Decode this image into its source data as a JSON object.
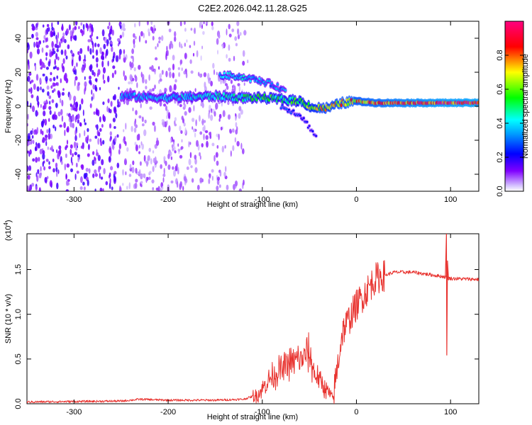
{
  "title": "C2E2.2026.042.11.28.G25",
  "chart_data": [
    {
      "type": "heatmap",
      "name": "spectrogram",
      "xlabel": "Height of straight line (km)",
      "ylabel": "Frequency (Hz)",
      "xlim": [
        -350,
        130
      ],
      "ylim": [
        -50,
        50
      ],
      "xticks": [
        -300,
        -200,
        -100,
        0,
        100
      ],
      "yticks": [
        -40,
        -20,
        0,
        20,
        40
      ],
      "colorbar": {
        "label": "Normalized spectral amplitude",
        "range": [
          0,
          1
        ],
        "ticks": [
          0,
          0.2,
          0.4,
          0.6,
          0.8
        ],
        "tick_labels": [
          "0.0",
          "0.2",
          "0.4",
          "0.6",
          "0.8"
        ],
        "colors": [
          "#ffffff",
          "#8000ff",
          "#0000ff",
          "#00ffff",
          "#00ff00",
          "#ffff00",
          "#ff0000",
          "#ff0080"
        ]
      },
      "main_trace": [
        {
          "x": -250,
          "y": 6,
          "a": 0.35
        },
        {
          "x": -200,
          "y": 5,
          "a": 0.4
        },
        {
          "x": -150,
          "y": 6,
          "a": 0.45
        },
        {
          "x": -120,
          "y": 5,
          "a": 0.5
        },
        {
          "x": -100,
          "y": 5,
          "a": 0.55
        },
        {
          "x": -80,
          "y": 4,
          "a": 0.55
        },
        {
          "x": -60,
          "y": 3,
          "a": 0.6
        },
        {
          "x": -45,
          "y": -1,
          "a": 0.7
        },
        {
          "x": -30,
          "y": -1,
          "a": 0.75
        },
        {
          "x": -15,
          "y": 2,
          "a": 0.8
        },
        {
          "x": 0,
          "y": 3,
          "a": 0.8
        },
        {
          "x": 20,
          "y": 2,
          "a": 0.85
        },
        {
          "x": 50,
          "y": 2,
          "a": 0.9
        },
        {
          "x": 90,
          "y": 2,
          "a": 0.95
        },
        {
          "x": 130,
          "y": 2,
          "a": 0.97
        }
      ],
      "upper_trace": [
        {
          "x": -145,
          "y": 18,
          "a": 0.45
        },
        {
          "x": -130,
          "y": 18,
          "a": 0.45
        },
        {
          "x": -110,
          "y": 16,
          "a": 0.4
        },
        {
          "x": -90,
          "y": 13,
          "a": 0.35
        },
        {
          "x": -75,
          "y": 9,
          "a": 0.35
        }
      ],
      "lower_trace": [
        {
          "x": -80,
          "y": 0,
          "a": 0.3
        },
        {
          "x": -60,
          "y": -5,
          "a": 0.25
        },
        {
          "x": -50,
          "y": -12,
          "a": 0.2
        },
        {
          "x": -42,
          "y": -19,
          "a": 0.2
        }
      ]
    },
    {
      "type": "line",
      "name": "snr",
      "xlabel": "Height of straight line (km)",
      "ylabel": "SNR (10 * v/v)",
      "multiplier": "(x10",
      "multiplier_exp": "4",
      "xlim": [
        -350,
        130
      ],
      "ylim": [
        0,
        1.9
      ],
      "xticks": [
        -300,
        -200,
        -100,
        0,
        100
      ],
      "yticks": [
        0,
        0.5,
        1.0,
        1.5
      ],
      "ytick_labels": [
        "0.0",
        "0.5",
        "1.0",
        "1.5"
      ],
      "color": "#e8332f",
      "series": [
        {
          "x": -350,
          "y": 0.02
        },
        {
          "x": -250,
          "y": 0.03
        },
        {
          "x": -230,
          "y": 0.05
        },
        {
          "x": -200,
          "y": 0.04
        },
        {
          "x": -150,
          "y": 0.04
        },
        {
          "x": -120,
          "y": 0.05
        },
        {
          "x": -105,
          "y": 0.1
        },
        {
          "x": -90,
          "y": 0.3
        },
        {
          "x": -70,
          "y": 0.45
        },
        {
          "x": -50,
          "y": 0.55
        },
        {
          "x": -45,
          "y": 0.35
        },
        {
          "x": -35,
          "y": 0.2
        },
        {
          "x": -25,
          "y": 0.05
        },
        {
          "x": -15,
          "y": 0.8
        },
        {
          "x": 0,
          "y": 1.1
        },
        {
          "x": 10,
          "y": 1.25
        },
        {
          "x": 20,
          "y": 1.4
        },
        {
          "x": 40,
          "y": 1.47
        },
        {
          "x": 60,
          "y": 1.47
        },
        {
          "x": 80,
          "y": 1.44
        },
        {
          "x": 93,
          "y": 1.42
        },
        {
          "x": 100,
          "y": 1.4
        },
        {
          "x": 130,
          "y": 1.39
        }
      ],
      "spike": {
        "x": 96,
        "top": 1.9,
        "bottom": 0.54
      }
    }
  ]
}
